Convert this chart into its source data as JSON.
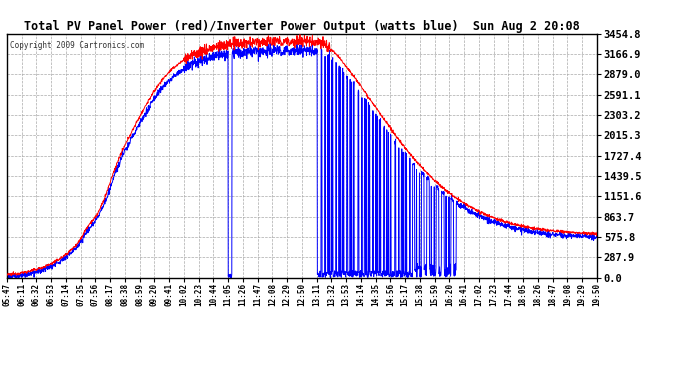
{
  "title": "Total PV Panel Power (red)/Inverter Power Output (watts blue)  Sun Aug 2 20:08",
  "copyright": "Copyright 2009 Cartronics.com",
  "background_color": "#ffffff",
  "plot_bg_color": "#ffffff",
  "grid_color": "#aaaaaa",
  "line_color_pv": "#ff0000",
  "line_color_inv": "#0000ff",
  "ymax": 3454.8,
  "ymin": 0.0,
  "ytick_step": 287.9,
  "x_labels": [
    "05:47",
    "06:11",
    "06:32",
    "06:53",
    "07:14",
    "07:35",
    "07:56",
    "08:17",
    "08:38",
    "08:59",
    "09:20",
    "09:41",
    "10:02",
    "10:23",
    "10:44",
    "11:05",
    "11:26",
    "11:47",
    "12:08",
    "12:29",
    "12:50",
    "13:11",
    "13:32",
    "13:53",
    "14:14",
    "14:35",
    "14:56",
    "15:17",
    "15:38",
    "15:59",
    "16:20",
    "16:41",
    "17:02",
    "17:23",
    "17:44",
    "18:05",
    "18:26",
    "18:47",
    "19:08",
    "19:29",
    "19:50"
  ]
}
